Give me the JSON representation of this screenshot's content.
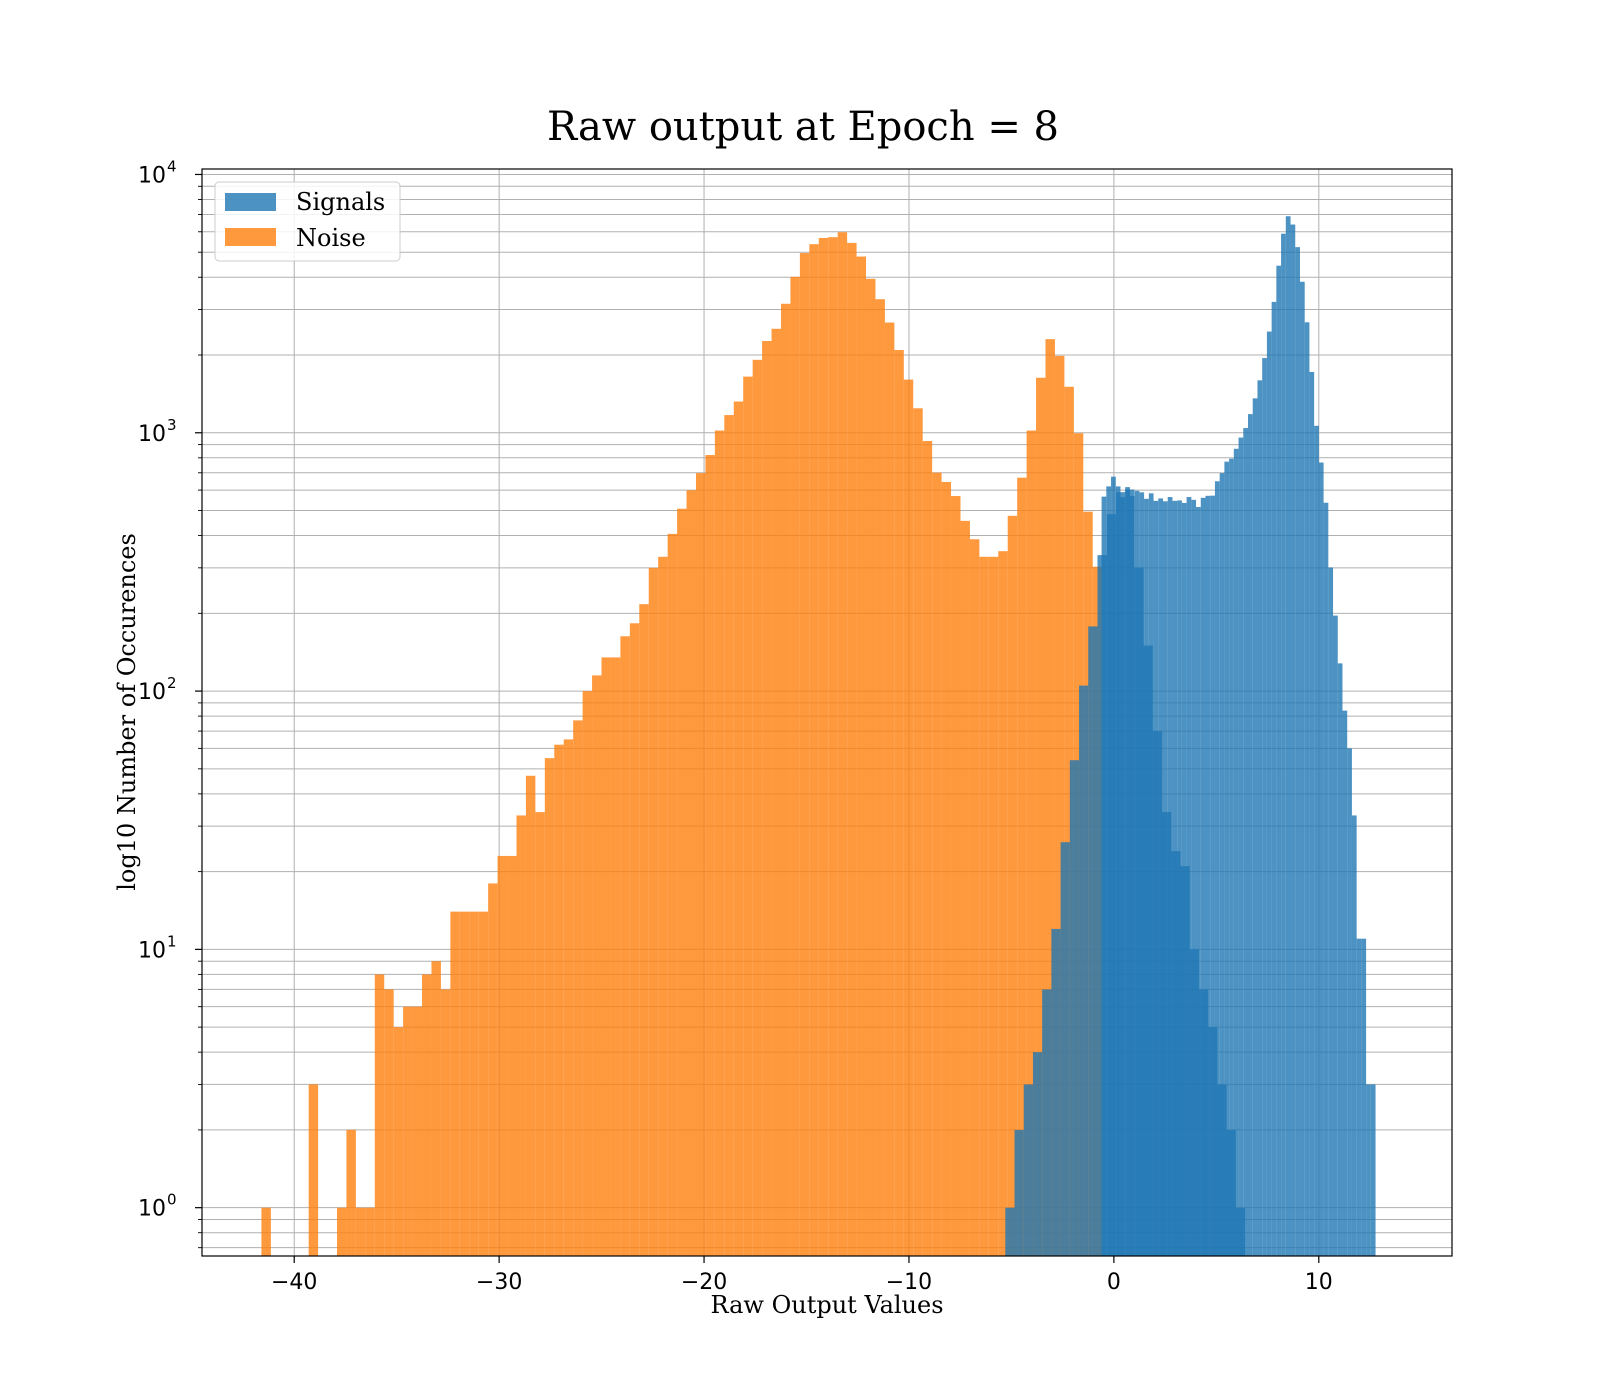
{
  "chart_data": {
    "type": "bar",
    "title": "Raw output at Epoch = 8",
    "xlabel": "Raw Output Values",
    "ylabel": "log10 Number of Occurences",
    "xlim": [
      -44.5,
      16.5
    ],
    "ylim": [
      0.65,
      10500
    ],
    "yscale": "log",
    "grid": true,
    "legend": {
      "loc": "top-left",
      "entries": [
        "Signals",
        "Noise"
      ]
    },
    "xticks": [
      -40,
      -30,
      -20,
      -10,
      0,
      10
    ],
    "xtick_labels": [
      "−40",
      "−30",
      "−20",
      "−10",
      "0",
      "10"
    ],
    "yticks": [
      1,
      10,
      100,
      1000,
      10000
    ],
    "ytick_labels": [
      [
        "10",
        "0"
      ],
      [
        "10",
        "1"
      ],
      [
        "10",
        "2"
      ],
      [
        "10",
        "3"
      ],
      [
        "10",
        "4"
      ]
    ],
    "colors": {
      "Signals": "#1f77b4",
      "Noise": "#ff7f0e"
    },
    "alpha": 0.8,
    "series": [
      {
        "name": "Noise",
        "bin_start": -41.6,
        "bin_width": 0.461,
        "values": [
          1,
          0,
          0,
          0,
          0,
          3,
          0,
          0,
          1,
          2,
          1,
          1,
          8,
          7,
          5,
          6,
          6,
          8,
          9,
          7,
          14,
          14,
          14,
          14,
          18,
          23,
          23,
          33,
          47,
          34,
          55,
          62,
          65,
          77,
          100,
          115,
          135,
          135,
          163,
          183,
          217,
          300,
          331,
          406,
          508,
          599,
          698,
          820,
          1020,
          1171,
          1321,
          1650,
          1916,
          2266,
          2527,
          3158,
          4016,
          4965,
          5372,
          5678,
          5718,
          5977,
          5434,
          4812,
          3945,
          3289,
          2672,
          2091,
          1606,
          1244,
          929,
          701,
          645,
          569,
          456,
          387,
          331,
          331,
          348,
          477,
          670,
          1020,
          1633,
          2304,
          1985,
          1507,
          996,
          495,
          303
        ]
      },
      {
        "name": "Signals",
        "bin_start": -5.3,
        "bin_width": 0.45,
        "values": [
          1,
          2,
          3,
          4,
          7,
          12,
          26,
          54,
          105,
          178,
          336,
          484,
          589,
          603,
          301,
          150,
          70,
          34,
          24,
          21,
          10,
          7,
          5,
          3,
          2,
          1
        ]
      },
      {
        "name": "Signals",
        "bin_start": -0.6,
        "bin_width": 0.2305,
        "values": [
          566,
          620,
          676,
          620,
          563,
          616,
          569,
          596,
          588,
          555,
          583,
          545,
          557,
          543,
          564,
          545,
          547,
          535,
          564,
          550,
          516,
          560,
          570,
          571,
          649,
          698,
          773,
          794,
          867,
          958,
          1043,
          1181,
          1359,
          1596,
          1946,
          2465,
          3212,
          4435,
          5897,
          6891,
          6401,
          5232,
          3843,
          2678,
          1720,
          1064,
          767,
          536,
          301,
          196,
          128,
          84,
          60,
          33,
          11,
          11,
          3,
          3
        ]
      }
    ]
  }
}
